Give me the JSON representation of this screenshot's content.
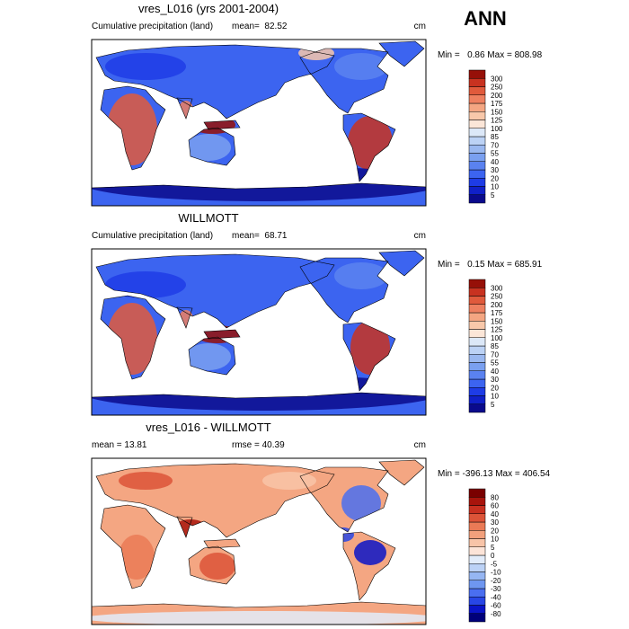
{
  "header": {
    "season": "ANN"
  },
  "panels": [
    {
      "title": "vres_L016 (yrs 2001-2004)",
      "left": "Cumulative precipitation (land)",
      "center": "mean=  82.52",
      "unit": "cm",
      "range": "Min =   0.86 Max = 808.98",
      "colorbar": {
        "labels": [
          5,
          10,
          20,
          30,
          40,
          55,
          70,
          85,
          100,
          125,
          150,
          175,
          200,
          250,
          300
        ],
        "colors": [
          "#0a0a8c",
          "#1020c8",
          "#1e3ce6",
          "#3c64f0",
          "#5a82f0",
          "#7aa0f0",
          "#9ab8f0",
          "#bcd2f5",
          "#dce8f8",
          "#fbe6d8",
          "#f8c8aa",
          "#f4a682",
          "#ee8060",
          "#e05a3c",
          "#c83220",
          "#961008"
        ]
      }
    },
    {
      "title": "WILLMOTT",
      "left": "Cumulative precipitation (land)",
      "center": "mean=  68.71",
      "unit": "cm",
      "range": "Min =   0.15 Max = 685.91",
      "colorbar": {
        "labels": [
          5,
          10,
          20,
          30,
          40,
          55,
          70,
          85,
          100,
          125,
          150,
          175,
          200,
          250,
          300
        ],
        "colors": [
          "#0a0a8c",
          "#1020c8",
          "#1e3ce6",
          "#3c64f0",
          "#5a82f0",
          "#7aa0f0",
          "#9ab8f0",
          "#bcd2f5",
          "#dce8f8",
          "#fbe6d8",
          "#f8c8aa",
          "#f4a682",
          "#ee8060",
          "#e05a3c",
          "#c83220",
          "#961008"
        ]
      }
    },
    {
      "title": "vres_L016 - WILLMOTT",
      "left": "mean = 13.81",
      "center": "rmse = 40.39",
      "unit": "cm",
      "range": "Min = -396.13 Max = 406.54",
      "colorbar": {
        "labels": [
          -80,
          -60,
          -40,
          -30,
          -20,
          -10,
          -5,
          0,
          5,
          10,
          20,
          30,
          40,
          60,
          80
        ],
        "colors": [
          "#00007a",
          "#0a14c8",
          "#2846e6",
          "#4a6ef0",
          "#6e96f0",
          "#96b6f2",
          "#bcd2f6",
          "#e2ecfa",
          "#fce4d8",
          "#f8c4a8",
          "#f2a07c",
          "#ea7a56",
          "#dc5438",
          "#c83020",
          "#a8140c",
          "#7a0000"
        ]
      }
    }
  ]
}
